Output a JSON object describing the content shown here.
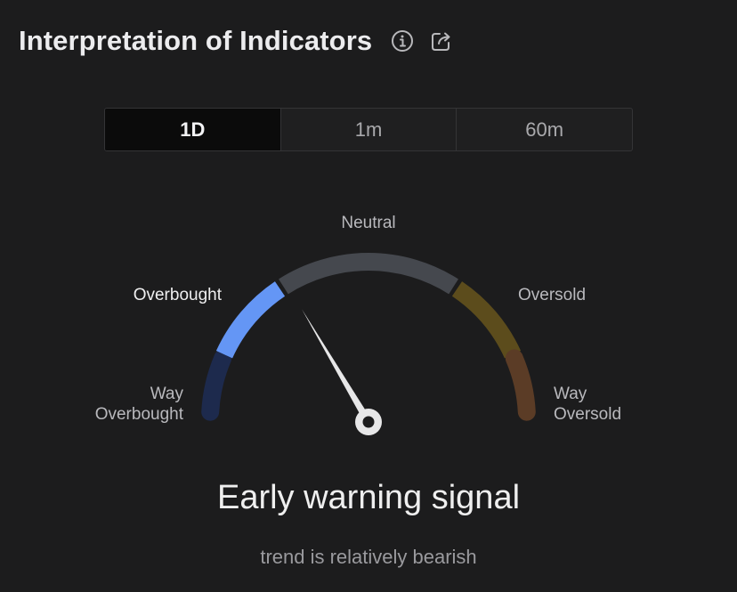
{
  "header": {
    "title": "Interpretation of Indicators",
    "info_icon": "info-icon",
    "share_icon": "share-icon"
  },
  "timeframes": {
    "selected": "1D",
    "items": [
      {
        "label": "1D",
        "active": true
      },
      {
        "label": "1m",
        "active": false
      },
      {
        "label": "60m",
        "active": false
      }
    ]
  },
  "gauge": {
    "labels": {
      "neutral": "Neutral",
      "overbought": "Overbought",
      "oversold": "Oversold",
      "way_overbought_line1": "Way",
      "way_overbought_line2": "Overbought",
      "way_oversold_line1": "Way",
      "way_oversold_line2": "Oversold"
    },
    "active_zone": "Overbought",
    "needle_level": 0.33,
    "colors": {
      "way_overbought": "#1d2a4d",
      "overbought": "#6496f5",
      "neutral": "#45484e",
      "oversold": "#5c4c1c",
      "way_oversold": "#5b3c26",
      "needle": "#e7e7e8"
    }
  },
  "signal": {
    "title": "Early warning signal",
    "subtitle": "trend is relatively bearish"
  }
}
